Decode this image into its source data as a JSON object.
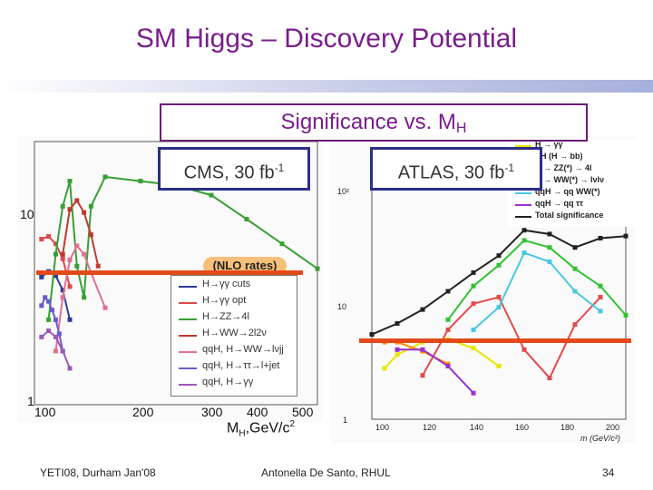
{
  "slide": {
    "title": "SM Higgs – Discovery Potential",
    "subtitle_main": "Significance vs. M",
    "subtitle_sub": "H",
    "cms_label_main": "CMS, 30 fb",
    "cms_label_sup": "-1",
    "atlas_label_main": "ATLAS, 30 fb",
    "atlas_label_sup": "-1"
  },
  "footer": {
    "left": "YETI08, Durham Jan'08",
    "middle": "Antonella De Santo, RHUL",
    "page": "34"
  },
  "colors": {
    "title": "#7a1e8c",
    "box_border": "#2b2f86",
    "threshold_line": "#e34a1a"
  },
  "chart_data": [
    {
      "type": "line",
      "name": "CMS",
      "xlabel": "M",
      "xlabel_sub": "H",
      "xlabel_unit": ",GeV/c",
      "xlabel_sup": "2",
      "x_ticks": [
        "100",
        "200",
        "300",
        "400",
        "500"
      ],
      "y_ticks": [
        "10",
        "1"
      ],
      "yscale": "log",
      "xlim": [
        100,
        500
      ],
      "ylim": [
        1,
        30
      ],
      "threshold": 5,
      "nlo_note": "(NLO rates)",
      "legend": [
        "H→γγ cuts",
        "H→γγ opt",
        "H→ZZ→4l",
        "H→WW→2l2ν",
        "qqH, H→WW→lνjj",
        "qqH, H→ττ→l+jet",
        "qqH, H→γγ"
      ],
      "series": [
        {
          "name": "H→γγ cuts",
          "color": "#2d3a9a",
          "x": [
            110,
            120,
            130,
            140,
            150
          ],
          "y": [
            5.2,
            5.6,
            5.3,
            4.4,
            3.0
          ]
        },
        {
          "name": "H→γγ opt",
          "color": "#d94a4a",
          "x": [
            110,
            120,
            130,
            140,
            150
          ],
          "y": [
            8.5,
            8.8,
            8.0,
            6.6,
            4.6
          ]
        },
        {
          "name": "H→ZZ→4l",
          "color": "#35a035",
          "x": [
            120,
            130,
            140,
            150,
            160,
            170,
            180,
            200,
            250,
            300,
            350,
            400,
            450,
            500
          ],
          "y": [
            3.0,
            7.0,
            13.0,
            18.0,
            6.0,
            4.0,
            13.0,
            19.0,
            18.0,
            17.0,
            15.0,
            11.0,
            8.0,
            5.8
          ]
        },
        {
          "name": "H→WW→2l2ν",
          "color": "#c0392b",
          "x": [
            140,
            150,
            160,
            170,
            180,
            190
          ],
          "y": [
            7.0,
            12.5,
            14.0,
            12.0,
            9.0,
            6.0
          ]
        },
        {
          "name": "qqH, H→WW→lνjj",
          "color": "#e07090",
          "x": [
            130,
            140,
            150,
            160,
            170,
            180,
            200
          ],
          "y": [
            2.0,
            4.0,
            6.5,
            7.8,
            7.0,
            5.5,
            3.5
          ]
        },
        {
          "name": "qqH, H→ττ→l+jet",
          "color": "#6a5acd",
          "x": [
            110,
            115,
            120,
            125,
            130,
            135,
            140
          ],
          "y": [
            3.6,
            4.0,
            3.8,
            3.4,
            3.0,
            2.5,
            2.0
          ]
        },
        {
          "name": "qqH, H→γγ",
          "color": "#9b59b6",
          "x": [
            110,
            120,
            130,
            140,
            150
          ],
          "y": [
            2.4,
            2.6,
            2.4,
            2.0,
            1.6
          ]
        }
      ]
    },
    {
      "type": "line",
      "name": "ATLAS",
      "x_ticks": [
        "100",
        "120",
        "140",
        "160",
        "180",
        "200"
      ],
      "y_ticks": [
        "10²",
        "10",
        "1"
      ],
      "yscale": "log",
      "xlim": [
        100,
        200
      ],
      "ylim": [
        1,
        100
      ],
      "threshold": 5,
      "xlabel_frag": "m",
      "xlabel_unit": "(GeV/c²)",
      "legend": [
        "H → γγ",
        "ttH (H → bb)",
        "H → ZZ(*) → 4l",
        "H → WW(*) → lνlν",
        "qqH → qq WW(*)",
        "qqH → qq ττ",
        "Total significance"
      ],
      "series": [
        {
          "name": "H → γγ",
          "color": "#e6e600",
          "x": [
            105,
            110,
            120,
            130,
            140,
            150
          ],
          "y": [
            2.5,
            3.2,
            4.0,
            4.2,
            3.6,
            2.6
          ]
        },
        {
          "name": "ttH (H → bb)",
          "color": "#ff8c00",
          "x": [
            105,
            110,
            120,
            130
          ],
          "y": [
            4.0,
            4.0,
            3.4,
            2.7
          ]
        },
        {
          "name": "H → ZZ(*) → 4l",
          "color": "#e34a4a",
          "x": [
            120,
            130,
            140,
            150,
            160,
            170,
            180,
            190
          ],
          "y": [
            2.2,
            5.0,
            8.0,
            9.0,
            3.5,
            2.1,
            5.5,
            9.0
          ]
        },
        {
          "name": "H → WW(*) → lνlν",
          "color": "#33c233",
          "x": [
            130,
            140,
            150,
            160,
            170,
            180,
            190,
            200
          ],
          "y": [
            6.0,
            11.0,
            16.0,
            25.0,
            22.0,
            15.0,
            11.0,
            6.5
          ]
        },
        {
          "name": "qqH → qq WW(*)",
          "color": "#48c8e0",
          "x": [
            140,
            150,
            160,
            170,
            180,
            190
          ],
          "y": [
            5.0,
            7.5,
            20.0,
            17.0,
            10.0,
            7.0
          ]
        },
        {
          "name": "qqH → qq ττ",
          "color": "#9b30d0",
          "x": [
            110,
            120,
            130,
            140
          ],
          "y": [
            3.5,
            3.5,
            2.6,
            1.6
          ]
        },
        {
          "name": "Total significance",
          "color": "#222222",
          "x": [
            100,
            110,
            120,
            130,
            140,
            150,
            160,
            170,
            180,
            190,
            200
          ],
          "y": [
            4.6,
            5.6,
            7.2,
            10.0,
            14.0,
            19.0,
            30.0,
            28.0,
            22.0,
            26.0,
            27.0
          ]
        }
      ]
    }
  ]
}
